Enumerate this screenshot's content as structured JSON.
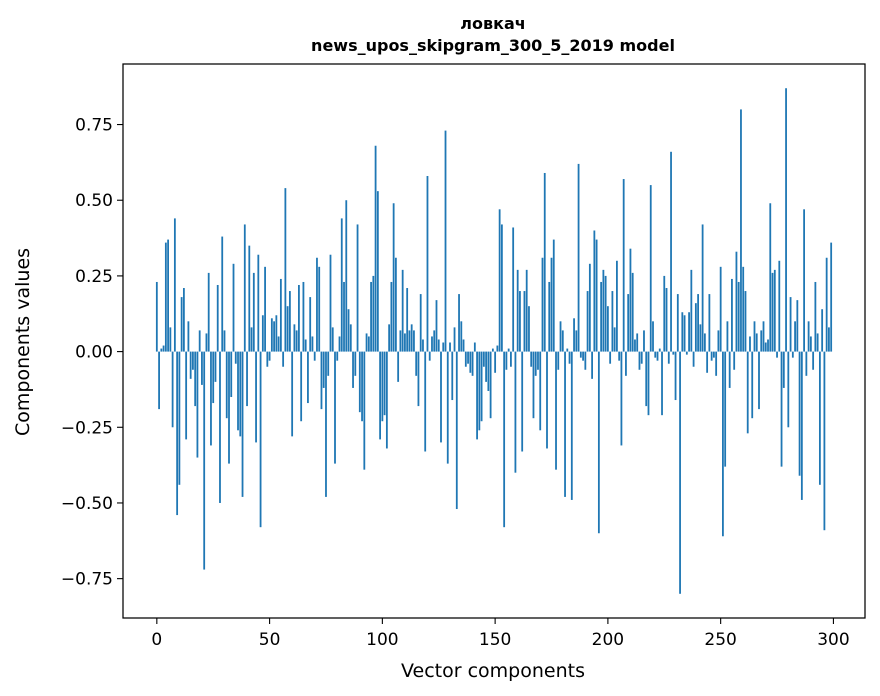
{
  "chart_data": {
    "type": "bar",
    "title": "ловкач",
    "subtitle": "news_upos_skipgram_300_5_2019 model",
    "xlabel": "Vector components",
    "ylabel": "Components values",
    "xlim": [
      -15,
      314
    ],
    "ylim": [
      -0.88,
      0.95
    ],
    "xticks": [
      0,
      50,
      100,
      150,
      200,
      250,
      300
    ],
    "yticks": [
      -0.75,
      -0.5,
      -0.25,
      0.0,
      0.25,
      0.5,
      0.75
    ],
    "ytick_labels": [
      "−0.75",
      "−0.50",
      "−0.25",
      "0.00",
      "0.25",
      "0.50",
      "0.75"
    ],
    "bar_color": "#1f77b4",
    "grid": false,
    "x": "indices 0..299",
    "values": [
      0.23,
      -0.19,
      0.01,
      0.02,
      0.36,
      0.37,
      0.08,
      -0.25,
      0.44,
      -0.54,
      -0.44,
      0.18,
      0.21,
      -0.29,
      0.1,
      -0.09,
      -0.06,
      -0.18,
      -0.35,
      0.07,
      -0.11,
      -0.72,
      0.06,
      0.26,
      -0.31,
      -0.17,
      -0.1,
      0.22,
      -0.5,
      0.38,
      0.07,
      -0.22,
      -0.37,
      -0.15,
      0.29,
      -0.04,
      -0.26,
      -0.28,
      -0.48,
      0.42,
      -0.18,
      0.35,
      0.08,
      0.26,
      -0.3,
      0.32,
      -0.58,
      0.12,
      0.28,
      -0.05,
      -0.03,
      0.11,
      0.1,
      0.12,
      0.05,
      0.24,
      -0.05,
      0.54,
      0.15,
      0.2,
      -0.28,
      0.09,
      0.07,
      0.22,
      -0.23,
      0.23,
      0.04,
      -0.17,
      0.18,
      0.05,
      -0.03,
      0.31,
      0.28,
      -0.19,
      -0.12,
      -0.48,
      -0.08,
      0.32,
      0.08,
      -0.37,
      -0.03,
      0.05,
      0.44,
      0.23,
      0.5,
      0.14,
      0.09,
      -0.12,
      -0.08,
      0.42,
      -0.2,
      -0.23,
      -0.39,
      0.06,
      0.05,
      0.23,
      0.25,
      0.68,
      0.53,
      -0.29,
      -0.23,
      -0.21,
      -0.32,
      0.09,
      0.23,
      0.49,
      0.31,
      -0.1,
      0.07,
      0.27,
      0.06,
      0.21,
      0.07,
      0.09,
      0.07,
      -0.08,
      -0.18,
      0.19,
      0.04,
      -0.33,
      0.58,
      -0.03,
      0.05,
      0.07,
      0.17,
      0.04,
      -0.3,
      0.03,
      0.73,
      -0.37,
      0.03,
      -0.16,
      0.08,
      -0.52,
      0.19,
      0.1,
      0.04,
      -0.05,
      -0.04,
      -0.07,
      -0.08,
      0.03,
      -0.29,
      -0.26,
      -0.23,
      -0.05,
      -0.1,
      -0.13,
      -0.22,
      0.01,
      -0.07,
      0.02,
      0.47,
      0.42,
      -0.58,
      -0.06,
      0.01,
      -0.05,
      0.41,
      -0.4,
      0.27,
      0.2,
      -0.33,
      0.2,
      0.27,
      0.15,
      -0.05,
      -0.22,
      -0.08,
      -0.06,
      -0.26,
      0.31,
      0.59,
      -0.32,
      0.23,
      0.31,
      0.37,
      -0.39,
      -0.06,
      0.1,
      0.07,
      -0.48,
      0.01,
      -0.04,
      -0.49,
      0.11,
      0.07,
      0.62,
      -0.02,
      -0.03,
      -0.06,
      0.2,
      0.29,
      -0.09,
      0.4,
      0.37,
      -0.6,
      0.23,
      0.27,
      0.25,
      0.15,
      -0.04,
      0.2,
      0.08,
      0.3,
      -0.03,
      -0.31,
      0.57,
      -0.08,
      0.19,
      0.34,
      0.26,
      0.04,
      0.06,
      -0.06,
      -0.04,
      0.07,
      -0.18,
      -0.21,
      0.55,
      0.1,
      -0.02,
      -0.03,
      0.01,
      -0.21,
      0.25,
      0.21,
      -0.04,
      0.66,
      -0.01,
      -0.16,
      0.19,
      -0.8,
      0.13,
      0.12,
      -0.01,
      0.13,
      0.27,
      -0.05,
      0.16,
      0.19,
      0.09,
      0.42,
      0.06,
      -0.07,
      0.19,
      -0.03,
      -0.02,
      -0.08,
      0.07,
      0.28,
      -0.61,
      -0.38,
      0.1,
      -0.12,
      0.24,
      -0.06,
      0.33,
      0.23,
      0.8,
      0.28,
      0.2,
      -0.27,
      0.05,
      -0.22,
      0.1,
      0.06,
      -0.19,
      0.07,
      0.1,
      0.03,
      0.04,
      0.49,
      0.26,
      0.27,
      -0.02,
      0.3,
      -0.38,
      -0.12,
      0.87,
      -0.25,
      0.18,
      -0.02,
      0.1,
      0.17,
      -0.41,
      -0.49,
      0.47,
      -0.08,
      0.1,
      0.05,
      -0.06,
      0.23,
      0.06,
      -0.44,
      0.14,
      -0.59,
      0.31,
      0.08,
      0.36
    ]
  }
}
